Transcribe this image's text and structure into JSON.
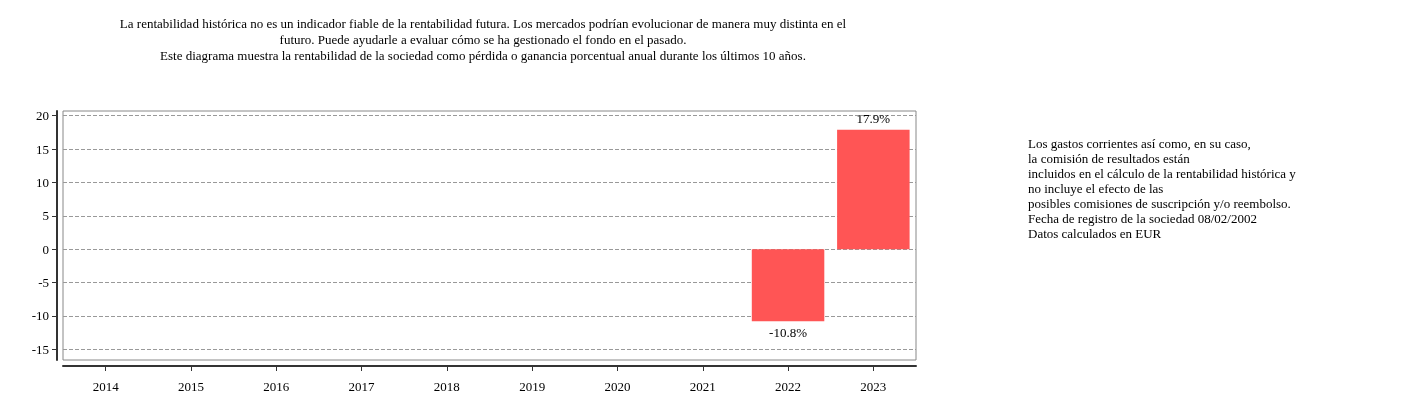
{
  "chart_data": {
    "type": "bar",
    "title": "La rentabilidad histórica no es un indicador fiable de la rentabilidad futura. Los mercados podrían evolucionar de manera muy distinta en el\nfuturo. Puede ayudarle a evaluar cómo se ha gestionado el fondo en el pasado.\nEste diagrama muestra la rentabilidad de la sociedad como pérdida o ganancia porcentual anual durante los últimos 10 años.",
    "categories": [
      "2014",
      "2015",
      "2016",
      "2017",
      "2018",
      "2019",
      "2020",
      "2021",
      "2022",
      "2023"
    ],
    "values": [
      null,
      null,
      null,
      null,
      null,
      null,
      null,
      null,
      -10.8,
      17.9
    ],
    "value_labels": [
      null,
      null,
      null,
      null,
      null,
      null,
      null,
      null,
      "-10.8%",
      "17.9%"
    ],
    "color": "#ff5555",
    "ylim": [
      -16.6,
      20.7
    ],
    "yticks": [
      -15,
      -10,
      -5,
      0,
      5,
      10,
      15,
      20
    ],
    "grid": "y",
    "annotations": [
      "Los gastos corrientes así como, en su caso,\nla comisión de resultados están\nincluidos en el cálculo de la rentabilidad histórica y\nno incluye el efecto de las\nposibles comisiones de suscripción y/o reembolso.\nFecha de registro de la sociedad 08/02/2002\nDatos calculados en EUR"
    ]
  }
}
